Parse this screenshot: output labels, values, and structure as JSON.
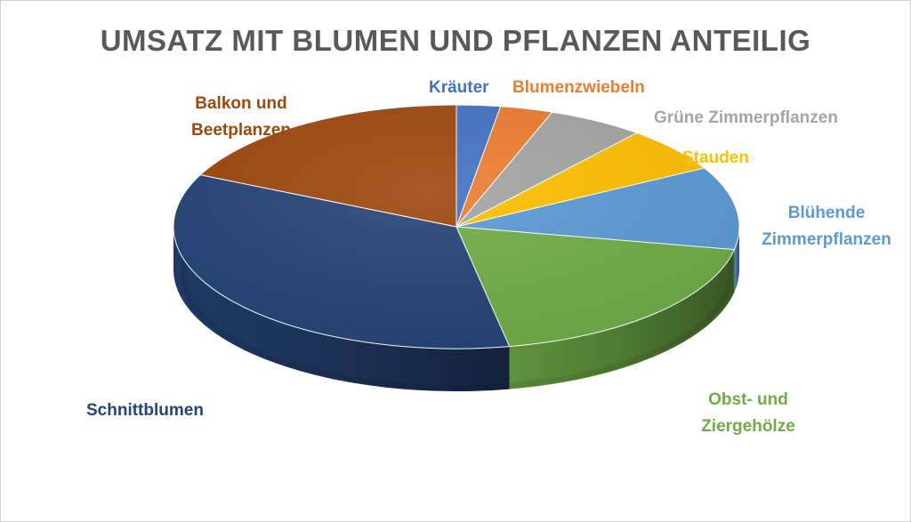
{
  "chart_data": {
    "type": "pie",
    "title": "UMSATZ MIT BLUMEN UND PFLANZEN ANTEILIG",
    "three_d": true,
    "legend": "none",
    "slices": [
      {
        "label": "Kräuter",
        "value": 2.5,
        "color": "#4472C4"
      },
      {
        "label": "Blumenzwiebeln",
        "value": 3,
        "color": "#ED7D31"
      },
      {
        "label": "Grüne Zimmerpflanzen",
        "value": 5.5,
        "color": "#A5A5A5"
      },
      {
        "label": "Stauden",
        "value": 6,
        "color": "#FFC000"
      },
      {
        "label": "Blühende Zimmerpflanzen",
        "value": 11,
        "color": "#5B9BD5"
      },
      {
        "label": "Obst- und Ziergehölze",
        "value": 19,
        "color": "#70AD47"
      },
      {
        "label": "Schnittblumen",
        "value": 35,
        "color": "#264478"
      },
      {
        "label": "Balkon und Beetplanzen",
        "value": 18,
        "color": "#9E480E"
      }
    ]
  }
}
